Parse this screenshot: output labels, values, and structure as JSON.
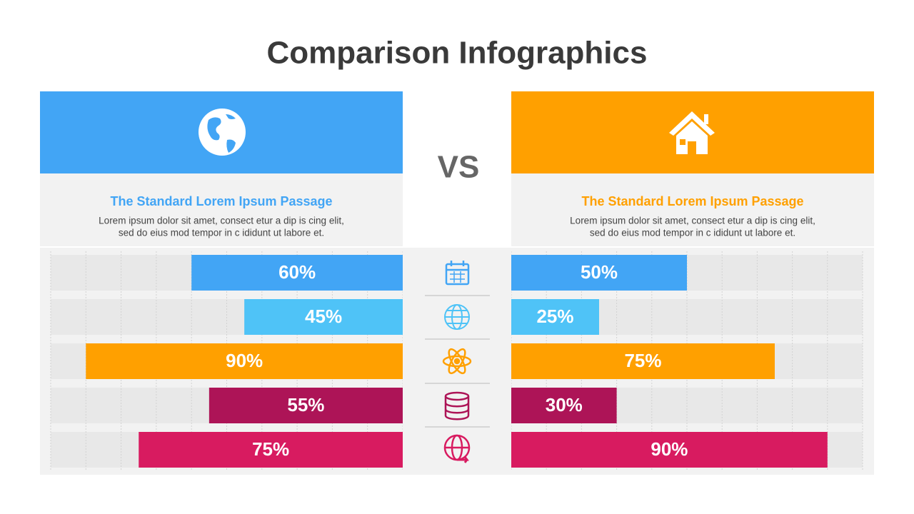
{
  "title": "Comparison Infographics",
  "vs": "VS",
  "panels": [
    {
      "heading": "The Standard Lorem Ipsum Passage",
      "lines": [
        "Lorem ipsum dolor sit amet, consect etur a dip is cing elit,",
        "sed do eius mod tempor in c ididunt ut labore et."
      ]
    },
    {
      "heading": "The Standard Lorem Ipsum Passage",
      "lines": [
        "Lorem ipsum dolor sit amet, consect etur a dip is cing elit,",
        "sed do eius mod tempor in c ididunt ut labore et."
      ]
    }
  ],
  "chart_data": [
    {
      "type": "bar",
      "direction": "left",
      "xlim": [
        0,
        100
      ],
      "values": [
        60,
        45,
        90,
        55,
        75
      ],
      "value_labels": [
        "60%",
        "45%",
        "90%",
        "55%",
        "75%"
      ],
      "colors": [
        "#42a5f5",
        "#4fc3f7",
        "#ffa000",
        "#ad1457",
        "#d81b60"
      ]
    },
    {
      "type": "bar",
      "direction": "right",
      "xlim": [
        0,
        100
      ],
      "values": [
        50,
        25,
        75,
        30,
        90
      ],
      "value_labels": [
        "50%",
        "25%",
        "75%",
        "30%",
        "90%"
      ],
      "colors": [
        "#42a5f5",
        "#4fc3f7",
        "#ffa000",
        "#ad1457",
        "#d81b60"
      ]
    }
  ]
}
